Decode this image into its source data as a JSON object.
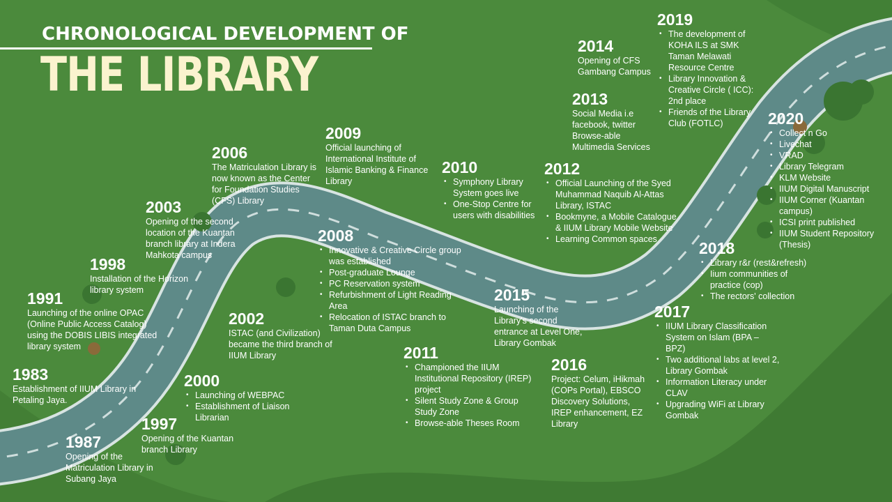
{
  "title": {
    "line1": "CHRONOLOGICAL DEVELOPMENT OF",
    "line2": "THE LIBRARY"
  },
  "colors": {
    "background": "#4b8a3c",
    "road": "#5e8a88",
    "road_edge": "#dbe6e4",
    "road_dash": "#cfdedd",
    "tree": "#3c7a34",
    "title_accent": "#fbf3cf",
    "text": "#ffffff"
  },
  "events": [
    {
      "year": "1983",
      "text": "Establishment of IIUM Library in Petaling Jaya."
    },
    {
      "year": "1987",
      "text": "Opening of the Matriculation Library in Subang Jaya"
    },
    {
      "year": "1991",
      "text": "Launching of the online OPAC (Online Public Access Catalog) using the DOBIS LIBIS integrated library system"
    },
    {
      "year": "1997",
      "text": "Opening of the Kuantan branch Library"
    },
    {
      "year": "1998",
      "text": "Installation of the Horizon library system"
    },
    {
      "year": "2000",
      "items": [
        "Launching of WEBPAC",
        "Establishment of Liaison Librarian"
      ]
    },
    {
      "year": "2002",
      "text": "ISTAC (and Civilization) became the third branch of IIUM Library"
    },
    {
      "year": "2003",
      "text": "Opening of the second location of the Kuantan branch library at Indera Mahkota campus"
    },
    {
      "year": "2006",
      "text": "The Matriculation Library is now known as the Center for Foundation Studies (CFS) Library"
    },
    {
      "year": "2008",
      "items": [
        "Innovative & Creative Circle group was established",
        "Post-graduate Lounge",
        "PC Reservation system",
        "Refurbishment of Light Reading Area",
        "Relocation of ISTAC branch to Taman Duta Campus"
      ]
    },
    {
      "year": "2009",
      "text": "Official launching of International Institute of Islamic Banking & Finance Library"
    },
    {
      "year": "2010",
      "items": [
        "Symphony Library System goes live",
        "One-Stop Centre for users with disabilities"
      ]
    },
    {
      "year": "2011",
      "items": [
        "Championed the IIUM Institutional Repository (IREP) project",
        "Silent Study Zone & Group Study Zone",
        "Browse-able Theses Room"
      ]
    },
    {
      "year": "2012",
      "items": [
        "Official Launching of the Syed Muhammad Naquib Al-Attas Library, ISTAC",
        "Bookmyne, a Mobile Catalogue & IIUM Library Mobile Website",
        "Learning Common spaces"
      ]
    },
    {
      "year": "2013",
      "text": "Social Media i.e facebook, twitter Browse-able Multimedia Services"
    },
    {
      "year": "2014",
      "text": "Opening of CFS Gambang Campus"
    },
    {
      "year": "2015",
      "text": "Launching of the Library's second entrance at Level One, Library Gombak"
    },
    {
      "year": "2016",
      "text": "Project: Celum, iHikmah (COPs Portal), EBSCO Discovery Solutions, IREP enhancement, EZ Library"
    },
    {
      "year": "2017",
      "items": [
        "IIUM Library Classification System on Islam (BPA – BPZ)",
        "Two additional labs at level 2, Library Gombak",
        "Information Literacy under CLAV",
        "Upgrading WiFi at Library Gombak"
      ]
    },
    {
      "year": "2018",
      "items": [
        "Library r&r (rest&refresh)",
        "Iium communities of practice (cop)",
        "The rectors' collection"
      ]
    },
    {
      "year": "2019",
      "items": [
        "The development of KOHA ILS at SMK Taman Melawati Resource Centre",
        "Library Innovation & Creative Circle ( ICC): 2nd place",
        "Friends of the Library Club (FOTLC)"
      ]
    },
    {
      "year": "2020",
      "items": [
        "Collect n Go",
        "Livechat",
        "VRAD",
        "Library Telegram",
        "KLM Website",
        "IIUM Digital Manuscript",
        "IIUM Corner (Kuantan campus)",
        "ICSI print published",
        "IIUM Student Repository (Thesis)"
      ]
    }
  ]
}
